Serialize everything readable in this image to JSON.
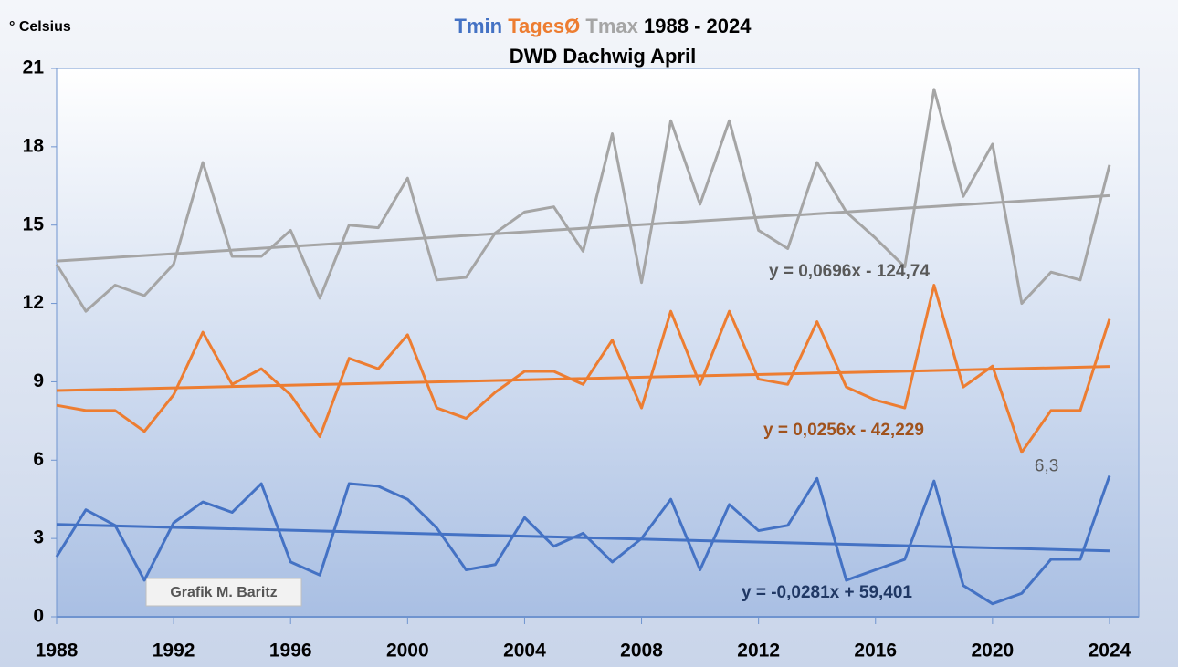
{
  "chart_data": {
    "type": "line",
    "title": "1988 - 2024",
    "subtitle": "DWD Dachwig April",
    "y_label": "° Celsius",
    "watermark": "Grafik M. Baritz",
    "x": [
      1988,
      1989,
      1990,
      1991,
      1992,
      1993,
      1994,
      1995,
      1996,
      1997,
      1998,
      1999,
      2000,
      2001,
      2002,
      2003,
      2004,
      2005,
      2006,
      2007,
      2008,
      2009,
      2010,
      2011,
      2012,
      2013,
      2014,
      2015,
      2016,
      2017,
      2018,
      2019,
      2020,
      2021,
      2022,
      2023,
      2024
    ],
    "series": [
      {
        "name": "Tmin",
        "color": "#4472c4",
        "values": [
          2.3,
          4.1,
          3.5,
          1.4,
          3.6,
          4.4,
          4.0,
          5.1,
          2.1,
          1.6,
          5.1,
          5.0,
          4.5,
          3.4,
          1.8,
          2.0,
          3.8,
          2.7,
          3.2,
          2.1,
          3.0,
          4.5,
          1.8,
          4.3,
          3.3,
          3.5,
          5.3,
          1.4,
          1.8,
          2.2,
          5.2,
          1.2,
          0.5,
          0.9,
          2.2,
          2.2,
          5.4
        ],
        "trend": {
          "label": "y = -0,0281x + 59,401",
          "slope": -0.0281,
          "intercept": 59.401,
          "color": "#203864"
        }
      },
      {
        "name": "TagesØ",
        "color": "#ed7d31",
        "values": [
          8.1,
          7.9,
          7.9,
          7.1,
          8.5,
          10.9,
          8.9,
          9.5,
          8.5,
          6.9,
          9.9,
          9.5,
          10.8,
          8.0,
          7.6,
          8.6,
          9.4,
          9.4,
          8.9,
          10.6,
          8.0,
          11.7,
          8.9,
          11.7,
          9.1,
          8.9,
          11.3,
          8.8,
          8.3,
          8.0,
          12.7,
          8.8,
          9.6,
          6.3,
          7.9,
          7.9,
          11.4
        ],
        "trend": {
          "label": "y = 0,0256x - 42,229",
          "slope": 0.0256,
          "intercept": -42.229,
          "color": "#a0521c"
        }
      },
      {
        "name": "Tmax",
        "color": "#a5a5a5",
        "values": [
          13.5,
          11.7,
          12.7,
          12.3,
          13.5,
          17.4,
          13.8,
          13.8,
          14.8,
          12.2,
          15.0,
          14.9,
          16.8,
          12.9,
          13.0,
          14.7,
          15.5,
          15.7,
          14.0,
          18.5,
          12.8,
          19.0,
          15.8,
          19.0,
          14.8,
          14.1,
          17.4,
          15.5,
          14.5,
          13.4,
          20.2,
          16.1,
          18.1,
          12.0,
          13.2,
          12.9,
          17.3
        ],
        "trend": {
          "label": "y = 0,0696x - 124,74",
          "slope": 0.0696,
          "intercept": -124.74,
          "color": "#595959"
        }
      }
    ],
    "annotations": [
      {
        "text": "6,3",
        "x": 2021,
        "y": 6.3
      }
    ],
    "xlim": [
      1988,
      2025
    ],
    "xticks": [
      1988,
      1992,
      1996,
      2000,
      2004,
      2008,
      2012,
      2016,
      2020,
      2024
    ],
    "ylim": [
      0,
      21
    ],
    "yticks": [
      0,
      3,
      6,
      9,
      12,
      15,
      18,
      21
    ],
    "grid": false
  }
}
